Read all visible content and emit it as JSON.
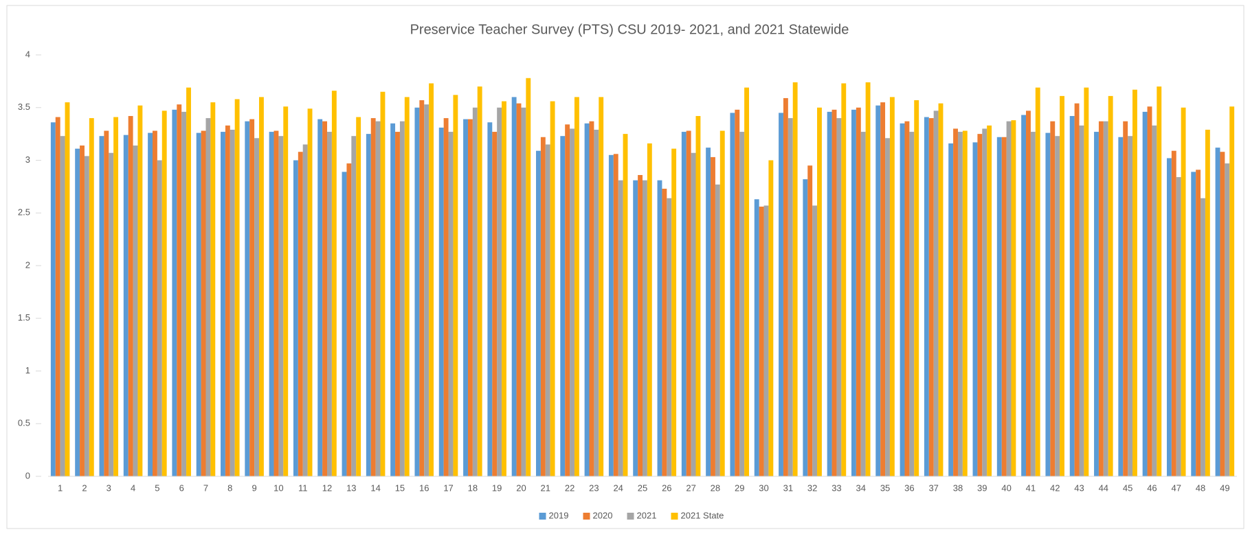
{
  "chart_data": {
    "type": "bar",
    "title": "Preservice Teacher Survey (PTS) CSU 2019- 2021, and 2021 Statewide",
    "categories": [
      "1",
      "2",
      "3",
      "4",
      "5",
      "6",
      "7",
      "8",
      "9",
      "10",
      "11",
      "12",
      "13",
      "14",
      "15",
      "16",
      "17",
      "18",
      "19",
      "20",
      "21",
      "22",
      "23",
      "24",
      "25",
      "26",
      "27",
      "28",
      "29",
      "30",
      "31",
      "32",
      "33",
      "34",
      "35",
      "36",
      "37",
      "38",
      "39",
      "40",
      "41",
      "42",
      "43",
      "44",
      "45",
      "46",
      "47",
      "48",
      "49"
    ],
    "series": [
      {
        "name": "2019",
        "color": "#5b9bd5",
        "values": [
          3.36,
          3.11,
          3.23,
          3.24,
          3.26,
          3.48,
          3.26,
          3.27,
          3.37,
          3.27,
          3.0,
          3.39,
          2.89,
          3.25,
          3.35,
          3.5,
          3.31,
          3.39,
          3.36,
          3.6,
          3.09,
          3.23,
          3.35,
          3.05,
          2.81,
          2.81,
          3.27,
          3.12,
          3.45,
          2.63,
          3.45,
          2.82,
          3.46,
          3.48,
          3.52,
          3.35,
          3.41,
          3.16,
          3.17,
          3.22,
          3.43,
          3.26,
          3.42,
          3.27,
          3.22,
          3.46,
          3.02,
          2.89,
          3.12
        ]
      },
      {
        "name": "2020",
        "color": "#ed7d31",
        "values": [
          3.41,
          3.14,
          3.28,
          3.42,
          3.28,
          3.53,
          3.28,
          3.33,
          3.39,
          3.28,
          3.08,
          3.37,
          2.97,
          3.4,
          3.27,
          3.57,
          3.4,
          3.39,
          3.27,
          3.54,
          3.22,
          3.34,
          3.37,
          3.06,
          2.86,
          2.73,
          3.28,
          3.03,
          3.48,
          2.56,
          3.59,
          2.95,
          3.48,
          3.5,
          3.55,
          3.37,
          3.4,
          3.3,
          3.25,
          3.22,
          3.47,
          3.37,
          3.54,
          3.37,
          3.37,
          3.51,
          3.09,
          2.91,
          3.08
        ]
      },
      {
        "name": "2021",
        "color": "#a5a5a5",
        "values": [
          3.23,
          3.04,
          3.07,
          3.14,
          3.0,
          3.46,
          3.4,
          3.29,
          3.21,
          3.23,
          3.15,
          3.27,
          3.23,
          3.37,
          3.37,
          3.53,
          3.27,
          3.5,
          3.5,
          3.5,
          3.15,
          3.3,
          3.29,
          2.81,
          2.81,
          2.64,
          3.07,
          2.77,
          3.27,
          2.57,
          3.4,
          2.57,
          3.4,
          3.27,
          3.21,
          3.27,
          3.47,
          3.27,
          3.3,
          3.37,
          3.27,
          3.23,
          3.33,
          3.37,
          3.23,
          3.33,
          2.84,
          2.64,
          2.97
        ]
      },
      {
        "name": "2021 State",
        "color": "#ffc000",
        "values": [
          3.55,
          3.4,
          3.41,
          3.52,
          3.47,
          3.69,
          3.55,
          3.58,
          3.6,
          3.51,
          3.49,
          3.66,
          3.41,
          3.65,
          3.6,
          3.73,
          3.62,
          3.7,
          3.56,
          3.78,
          3.56,
          3.6,
          3.6,
          3.25,
          3.16,
          3.11,
          3.42,
          3.28,
          3.69,
          3.0,
          3.74,
          3.5,
          3.73,
          3.74,
          3.6,
          3.57,
          3.54,
          3.28,
          3.33,
          3.38,
          3.69,
          3.61,
          3.69,
          3.61,
          3.67,
          3.7,
          3.5,
          3.29,
          3.51
        ]
      }
    ],
    "ylim": [
      0,
      4
    ],
    "yticks": [
      0,
      0.5,
      1,
      1.5,
      2,
      2.5,
      3,
      3.5,
      4
    ],
    "grid": false,
    "legend": "bottom"
  }
}
